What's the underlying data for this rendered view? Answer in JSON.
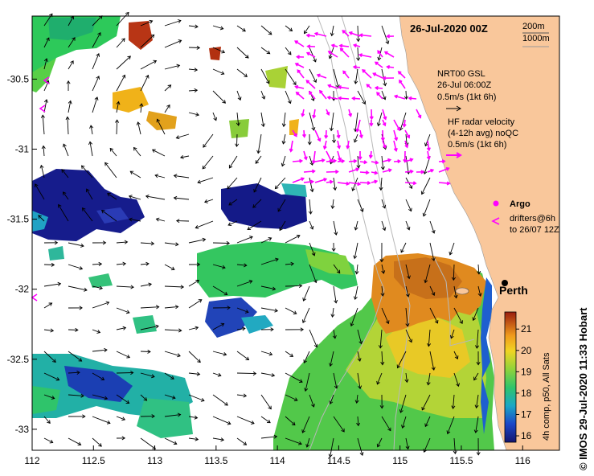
{
  "map": {
    "date_label": "26-Jul-2020 00Z",
    "bathy_labels": [
      "200m",
      "1000m"
    ],
    "lon_ticks": [
      "112",
      "112.5",
      "113",
      "113.5",
      "114",
      "114.5",
      "115",
      "115.5",
      "116"
    ],
    "lat_ticks": [
      "-30.5",
      "-31",
      "-31.5",
      "-32",
      "-32.5",
      "-33"
    ],
    "lon_range": [
      112,
      116.3
    ],
    "lat_range": [
      -33.15,
      -30.05
    ],
    "city": "Perth",
    "colors": {
      "land": "#f9c79b",
      "drifter_vectors": "#ff00ff",
      "gsl_vectors": "#000000",
      "bathymetry": "#b8b8b8"
    }
  },
  "legend": {
    "gsl_title": "NRT00 GSL",
    "gsl_date": "26-Jul 06:00Z",
    "gsl_scale": "0.5m/s (1kt 6h)",
    "hf_title": "HF radar velocity",
    "hf_sub": "(4-12h avg) noQC",
    "hf_scale": "0.5m/s (1kt 6h)",
    "argo": "Argo",
    "drifters": "drifters@6h",
    "drifters_to": "to 26/07 12Z"
  },
  "colorbar": {
    "title": "4h comp, p50, All Sats",
    "ticks": [
      "16",
      "17",
      "18",
      "19",
      "20",
      "21"
    ],
    "range": [
      15.7,
      21.8
    ]
  },
  "credit": "© IMOS 29-Jul-2020 11:33 Hobart"
}
